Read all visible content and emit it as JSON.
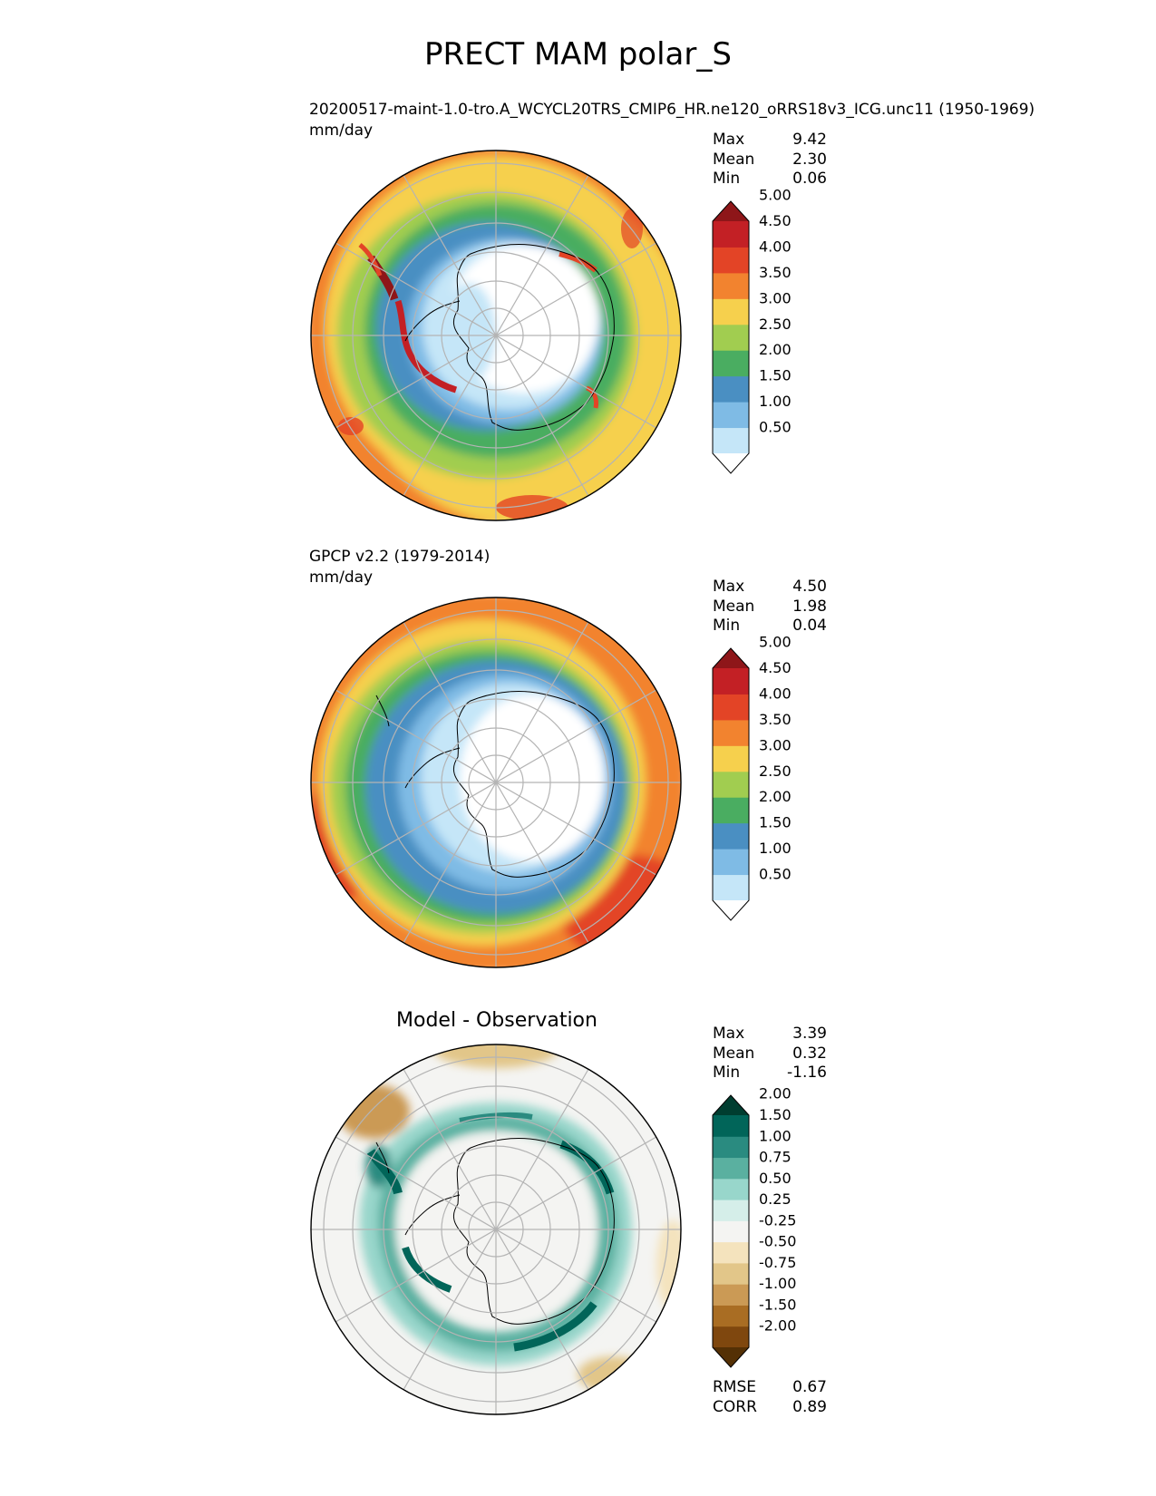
{
  "figure": {
    "title": "PRECT MAM polar_S"
  },
  "panels": [
    {
      "id": "test",
      "case_name": "20200517-maint-1.0-tro.A_WCYCL20TRS_CMIP6_HR.ne120_oRRS18v3_ICG.unc11 (1950-1969)",
      "units": "mm/day",
      "stats": [
        {
          "label": "Max",
          "value": "9.42"
        },
        {
          "label": "Mean",
          "value": "2.30"
        },
        {
          "label": "Min",
          "value": "0.06"
        }
      ]
    },
    {
      "id": "reference",
      "case_name": "GPCP v2.2 (1979-2014)",
      "units": "mm/day",
      "stats": [
        {
          "label": "Max",
          "value": "4.50"
        },
        {
          "label": "Mean",
          "value": "1.98"
        },
        {
          "label": "Min",
          "value": "0.04"
        }
      ]
    },
    {
      "id": "diff",
      "title": "Model - Observation",
      "stats": [
        {
          "label": "Max",
          "value": "3.39"
        },
        {
          "label": "Mean",
          "value": "0.32"
        },
        {
          "label": "Min",
          "value": "-1.16"
        }
      ],
      "metrics": [
        {
          "label": "RMSE",
          "value": "0.67"
        },
        {
          "label": "CORR",
          "value": "0.89"
        }
      ]
    }
  ],
  "colorbars": {
    "precip": {
      "levels": [
        "0.50",
        "1.00",
        "1.50",
        "2.00",
        "2.50",
        "3.00",
        "3.50",
        "4.00",
        "4.50",
        "5.00"
      ],
      "colors": [
        "#ffffff",
        "#c5e6f8",
        "#7fbbe5",
        "#4a8fc2",
        "#4aad61",
        "#a1cd50",
        "#f6d04d",
        "#f2832f",
        "#e34426",
        "#c32025",
        "#8e1619"
      ]
    },
    "diff": {
      "levels": [
        "-2.00",
        "-1.50",
        "-1.00",
        "-0.75",
        "-0.50",
        "-0.25",
        "0.25",
        "0.50",
        "0.75",
        "1.00",
        "1.50",
        "2.00"
      ],
      "colors": [
        "#543005",
        "#7f470e",
        "#a96d23",
        "#cb9a55",
        "#e2c689",
        "#f4e3bd",
        "#f4f4f2",
        "#d5eee9",
        "#98d6cb",
        "#5ab0a0",
        "#2a8b80",
        "#016559",
        "#003d30"
      ]
    }
  }
}
